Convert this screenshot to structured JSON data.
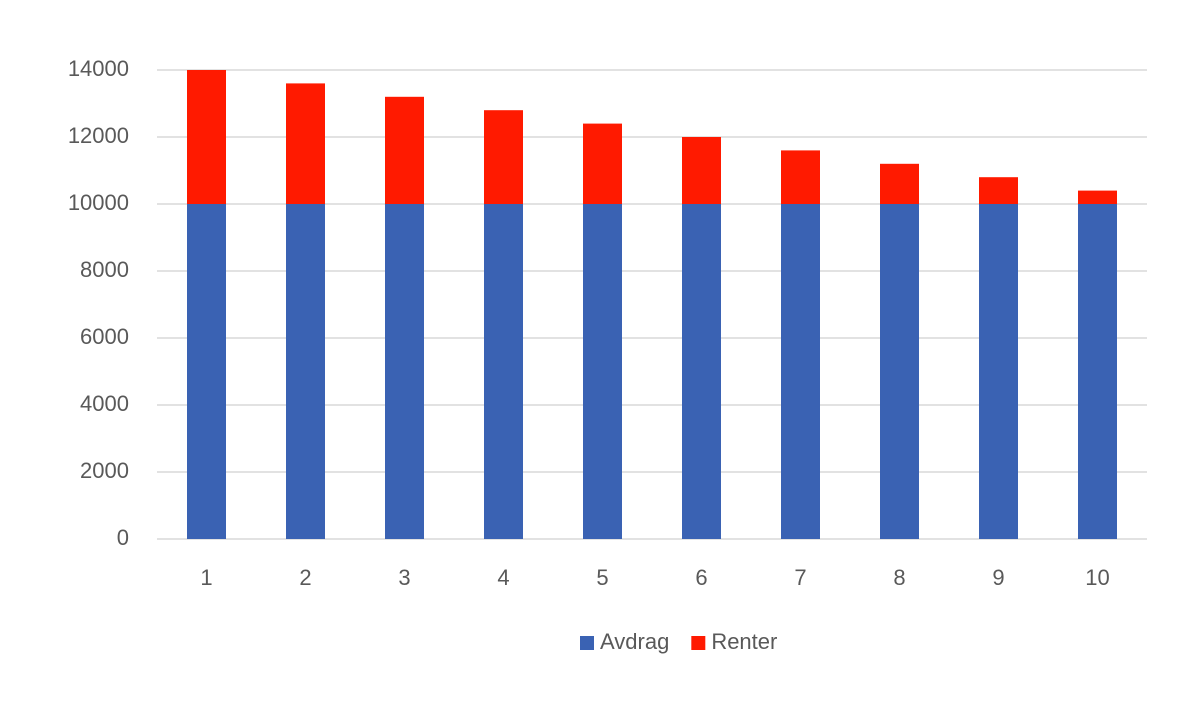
{
  "chart_data": {
    "type": "bar",
    "stacked": true,
    "categories": [
      "1",
      "2",
      "3",
      "4",
      "5",
      "6",
      "7",
      "8",
      "9",
      "10"
    ],
    "series": [
      {
        "name": "Avdrag",
        "color": "#3a62b3",
        "values": [
          10000,
          10000,
          10000,
          10000,
          10000,
          10000,
          10000,
          10000,
          10000,
          10000
        ]
      },
      {
        "name": "Renter",
        "color": "#ff1a00",
        "values": [
          4000,
          3600,
          3200,
          2800,
          2400,
          2000,
          1600,
          1200,
          800,
          400
        ]
      }
    ],
    "ylim": [
      0,
      14000
    ],
    "yticks": [
      0,
      2000,
      4000,
      6000,
      8000,
      10000,
      12000,
      14000
    ],
    "grid": true,
    "legend": "bottom"
  }
}
